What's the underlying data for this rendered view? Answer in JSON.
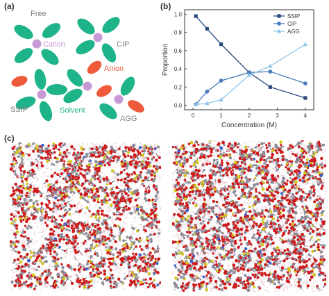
{
  "panels": {
    "a": {
      "label": "(a)",
      "texts": {
        "free": "Free",
        "cation": "Cation",
        "cip": "CIP",
        "anion": "Anion",
        "ssip": "SSIP",
        "solvent": "Solvent",
        "agg": "AGG"
      },
      "colors": {
        "solvent": "#1fb38a",
        "cation": "#c79ad6",
        "anion": "#ef5a3c",
        "label_gray": "#7f7f7f",
        "cation_text": "#c79ad6",
        "anion_text": "#ef5a3c",
        "solvent_text": "#1fb38a"
      }
    },
    "b": {
      "label": "(b)"
    },
    "c": {
      "label": "(c)"
    }
  },
  "chart_data": {
    "type": "line",
    "xlabel": "Concentration (M)",
    "ylabel": "Proportion",
    "xlim": [
      -0.3,
      4.3
    ],
    "ylim": [
      -0.05,
      1.05
    ],
    "xticks": [
      "0",
      "1",
      "2",
      "3",
      "4"
    ],
    "yticks": [
      "0.0",
      "0.2",
      "0.4",
      "0.6",
      "0.8",
      "1.0"
    ],
    "grid": false,
    "legend_position": "top-right",
    "series": [
      {
        "name": "SSIP",
        "color": "#2a4a7f",
        "marker": "square",
        "x": [
          0.1,
          0.5,
          1.0,
          2.0,
          2.75,
          4.0
        ],
        "y": [
          0.98,
          0.84,
          0.67,
          0.36,
          0.2,
          0.08
        ]
      },
      {
        "name": "CIP",
        "color": "#4a7cbf",
        "marker": "circle",
        "x": [
          0.1,
          0.5,
          1.0,
          2.0,
          2.75,
          4.0
        ],
        "y": [
          0.01,
          0.15,
          0.27,
          0.36,
          0.37,
          0.24
        ]
      },
      {
        "name": "AGG",
        "color": "#8ec5e8",
        "marker": "triangle",
        "x": [
          0.1,
          0.5,
          1.0,
          2.0,
          2.75,
          4.0
        ],
        "y": [
          0.01,
          0.02,
          0.06,
          0.33,
          0.43,
          0.67
        ]
      }
    ]
  },
  "md_colors": {
    "carbon": "#8d8d99",
    "oxygen": "#d11a1a",
    "sulfur": "#d4c61a",
    "hydrogen": "#e6c8d0",
    "nitrogen": "#3a5fcd"
  }
}
